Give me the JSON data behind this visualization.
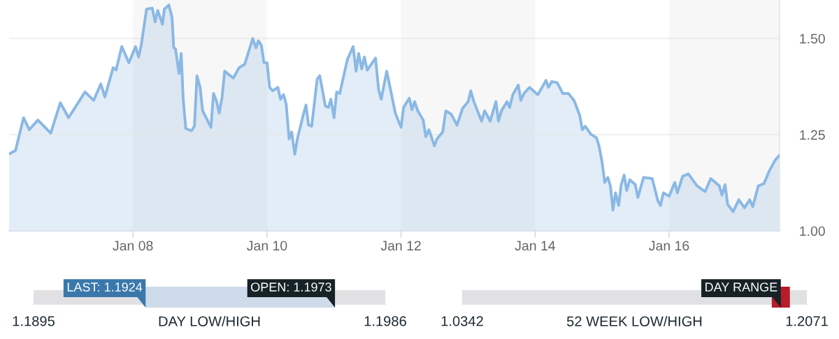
{
  "chart_data": [
    {
      "type": "area",
      "x": [
        "2006-02-25",
        "2006-04",
        "2006-05-15",
        "2006-06-15",
        "2006-08",
        "2006-10-10",
        "2006-12",
        "2007-01-15",
        "2007-04-15",
        "2007-06",
        "2007-07-10",
        "2007-08",
        "2007-09-15",
        "2007-10",
        "2007-11",
        "2007-12-10",
        "2008-01-15",
        "2008-02",
        "2008-02-15",
        "2008-03-15",
        "2008-04-15",
        "2008-05",
        "2008-05-15",
        "2008-06-10",
        "2008-06-20",
        "2008-07-15",
        "2008-08",
        "2008-08-10",
        "2008-08-20",
        "2008-09-08",
        "2008-09-20",
        "2008-10",
        "2008-10-15",
        "2008-11-15",
        "2008-12",
        "2008-12-15",
        "2009-01",
        "2009-01-15",
        "2009-03",
        "2009-03-15",
        "2009-04",
        "2009-04-15",
        "2009-05",
        "2009-05-15",
        "2009-07",
        "2009-08",
        "2009-09",
        "2009-10-15",
        "2009-11",
        "2009-11-15",
        "2009-12",
        "2009-12-15",
        "2010-01",
        "2010-01-15",
        "2010-02",
        "2010-03",
        "2010-03-15",
        "2010-04",
        "2010-04-15",
        "2010-05",
        "2010-05-15",
        "2010-06",
        "2010-06-15",
        "2010-07-15",
        "2010-08",
        "2010-08-15",
        "2010-09",
        "2010-10",
        "2010-10-15",
        "2010-11-15",
        "2010-12",
        "2010-12-15",
        "2011-01",
        "2011-01-15",
        "2011-02",
        "2011-03-15",
        "2011-04-15",
        "2011-05",
        "2011-05-15",
        "2011-06",
        "2011-06-15",
        "2011-07",
        "2011-08-15",
        "2011-09",
        "2011-09-15",
        "2011-10-15",
        "2011-11",
        "2011-12",
        "2012-01",
        "2012-01-15",
        "2012-02-15",
        "2012-03",
        "2012-03-15",
        "2012-04",
        "2012-05",
        "2012-05-15",
        "2012-06",
        "2012-07",
        "2012-07-15",
        "2012-08-15",
        "2012-09",
        "2012-10",
        "2012-11",
        "2012-12",
        "2013-01",
        "2013-01-15",
        "2013-02",
        "2013-03-15",
        "2013-04",
        "2013-05",
        "2013-06",
        "2013-06-15",
        "2013-07",
        "2013-08",
        "2013-08-15",
        "2013-09",
        "2013-10",
        "2013-10-15",
        "2013-11",
        "2013-12",
        "2014-01-15",
        "2014-02-15",
        "2014-03",
        "2014-03-15",
        "2014-04",
        "2014-05",
        "2014-06",
        "2014-07",
        "2014-08",
        "2014-09",
        "2014-09-15",
        "2014-10",
        "2014-11",
        "2014-12",
        "2014-12-15",
        "2015-01",
        "2015-01-15",
        "2015-02",
        "2015-02-15",
        "2015-03",
        "2015-03-15",
        "2015-04",
        "2015-04-15",
        "2015-05",
        "2015-05-15",
        "2015-06",
        "2015-07",
        "2015-07-15",
        "2015-08-15",
        "2015-10",
        "2015-11",
        "2015-11-15",
        "2015-12",
        "2016-01",
        "2016-02",
        "2016-02-15",
        "2016-03-15",
        "2016-04-15",
        "2016-06",
        "2016-07-15",
        "2016-08-15",
        "2016-10",
        "2016-10-15",
        "2016-11",
        "2016-11-15",
        "2016-12-15",
        "2017-01-15",
        "2017-02-15",
        "2017-03-15",
        "2017-04",
        "2017-05",
        "2017-06",
        "2017-07",
        "2017-08",
        "2017-08-24"
      ],
      "series": [
        {
          "color": "#8bb8e4",
          "values": [
            1.2,
            1.209,
            1.294,
            1.263,
            1.288,
            1.254,
            1.333,
            1.294,
            1.361,
            1.339,
            1.382,
            1.348,
            1.424,
            1.418,
            1.479,
            1.437,
            1.479,
            1.452,
            1.482,
            1.576,
            1.579,
            1.543,
            1.573,
            1.537,
            1.576,
            1.587,
            1.555,
            1.476,
            1.473,
            1.409,
            1.461,
            1.342,
            1.266,
            1.26,
            1.272,
            1.403,
            1.373,
            1.312,
            1.269,
            1.357,
            1.336,
            1.306,
            1.348,
            1.415,
            1.397,
            1.424,
            1.433,
            1.5,
            1.476,
            1.494,
            1.482,
            1.437,
            1.437,
            1.373,
            1.364,
            1.373,
            1.342,
            1.354,
            1.33,
            1.239,
            1.257,
            1.199,
            1.239,
            1.297,
            1.327,
            1.275,
            1.272,
            1.394,
            1.403,
            1.324,
            1.321,
            1.342,
            1.294,
            1.361,
            1.357,
            1.446,
            1.479,
            1.415,
            1.461,
            1.421,
            1.452,
            1.418,
            1.449,
            1.367,
            1.342,
            1.415,
            1.376,
            1.306,
            1.269,
            1.321,
            1.345,
            1.315,
            1.336,
            1.312,
            1.288,
            1.245,
            1.263,
            1.221,
            1.239,
            1.257,
            1.312,
            1.303,
            1.275,
            1.318,
            1.336,
            1.364,
            1.336,
            1.285,
            1.312,
            1.285,
            1.336,
            1.285,
            1.312,
            1.336,
            1.321,
            1.354,
            1.379,
            1.339,
            1.357,
            1.373,
            1.354,
            1.379,
            1.391,
            1.373,
            1.388,
            1.385,
            1.357,
            1.357,
            1.339,
            1.3,
            1.263,
            1.272,
            1.251,
            1.242,
            1.221,
            1.178,
            1.126,
            1.139,
            1.117,
            1.054,
            1.099,
            1.066,
            1.12,
            1.145,
            1.105,
            1.133,
            1.12,
            1.087,
            1.139,
            1.136,
            1.078,
            1.066,
            1.099,
            1.09,
            1.126,
            1.099,
            1.142,
            1.148,
            1.117,
            1.102,
            1.136,
            1.117,
            1.093,
            1.12,
            1.069,
            1.05,
            1.081,
            1.06,
            1.081,
            1.063,
            1.117,
            1.123,
            1.157,
            1.184,
            1.196
          ]
        }
      ],
      "xlim": [
        "2006-02-25",
        "2017-08-25"
      ],
      "ylim": [
        1.0,
        1.6
      ],
      "xticks": [
        {
          "value": "2008-01-01",
          "label": "Jan 08"
        },
        {
          "value": "2010-01-01",
          "label": "Jan 10"
        },
        {
          "value": "2012-01-01",
          "label": "Jan 12"
        },
        {
          "value": "2014-01-01",
          "label": "Jan 14"
        },
        {
          "value": "2016-01-01",
          "label": "Jan 16"
        }
      ],
      "yticks": [
        {
          "value": 1.0,
          "label": "1.00"
        },
        1.25,
        {
          "value": 1.5,
          "label": "1.50"
        }
      ],
      "grid": "y",
      "bands": [
        {
          "axis": "x",
          "from": "2008-01-01",
          "to": "2010-01-01",
          "color": "#f7f7f7"
        },
        {
          "axis": "x",
          "from": "2012-01-01",
          "to": "2014-01-01",
          "color": "#f7f7f7"
        },
        {
          "axis": "x",
          "from": "2016-01-01",
          "to": "2017-08-25",
          "color": "#f7f7f7"
        }
      ]
    },
    {
      "type": "bar",
      "orientation": "horizontal",
      "categories": [
        null
      ],
      "series": [
        {
          "color": "#cddbea",
          "base": [
            1.1924
          ],
          "values": [
            0.0049
          ]
        }
      ],
      "xlim": [
        1.1895,
        1.1986
      ],
      "xticks": [
        1.1895,
        1.1986
      ],
      "xlabel": "DAY LOW/HIGH",
      "bands": [
        {
          "axis": "x",
          "from": 1.1895,
          "to": 1.1986,
          "color": "#e1e1e3"
        }
      ],
      "annotations": [
        {
          "text": "LAST: 1.1924",
          "x": 1.1924
        },
        {
          "text": "OPEN: 1.1973",
          "x": 1.1973
        }
      ]
    },
    {
      "type": "bar",
      "orientation": "horizontal",
      "categories": [
        null
      ],
      "series": [
        {
          "color": "#b71c2b",
          "base": [
            1.1895
          ],
          "values": [
            0.0091
          ]
        }
      ],
      "xlim": [
        1.0342,
        1.2071
      ],
      "xticks": [
        1.0342,
        1.2071
      ],
      "xlabel": "52 WEEK LOW/HIGH",
      "bands": [
        {
          "axis": "x",
          "from": 1.0342,
          "to": 1.2071,
          "color": "#e1e1e3"
        }
      ],
      "annotations": [
        "DAY RANGE"
      ]
    }
  ]
}
